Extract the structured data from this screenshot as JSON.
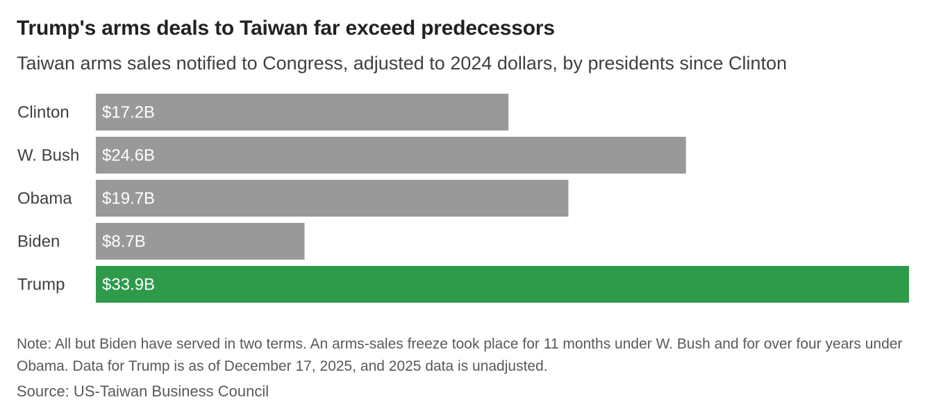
{
  "title": "Trump's arms deals to Taiwan far exceed predecessors",
  "subtitle": "Taiwan arms sales notified to Congress, adjusted to 2024 dollars, by presidents since Clinton",
  "note": "Note: All but Biden have served in two terms. An arms-sales freeze took place for 11 months under W. Bush and for over four years under Obama. Data for Trump is as of December 17, 2025, and 2025 data is unadjusted.",
  "source": "Source: US-Taiwan Business Council",
  "colors": {
    "default_bar": "#999999",
    "highlight_bar": "#2e9a4a"
  },
  "chart_data": {
    "type": "bar",
    "orientation": "horizontal",
    "categories": [
      "Clinton",
      "W. Bush",
      "Obama",
      "Biden",
      "Trump"
    ],
    "values": [
      17.2,
      24.6,
      19.7,
      8.7,
      33.9
    ],
    "value_labels": [
      "$17.2B",
      "$24.6B",
      "$19.7B",
      "$8.7B",
      "$33.9B"
    ],
    "highlight": "Trump",
    "xlim": [
      0,
      33.9
    ],
    "grid": false,
    "legend": "none"
  }
}
